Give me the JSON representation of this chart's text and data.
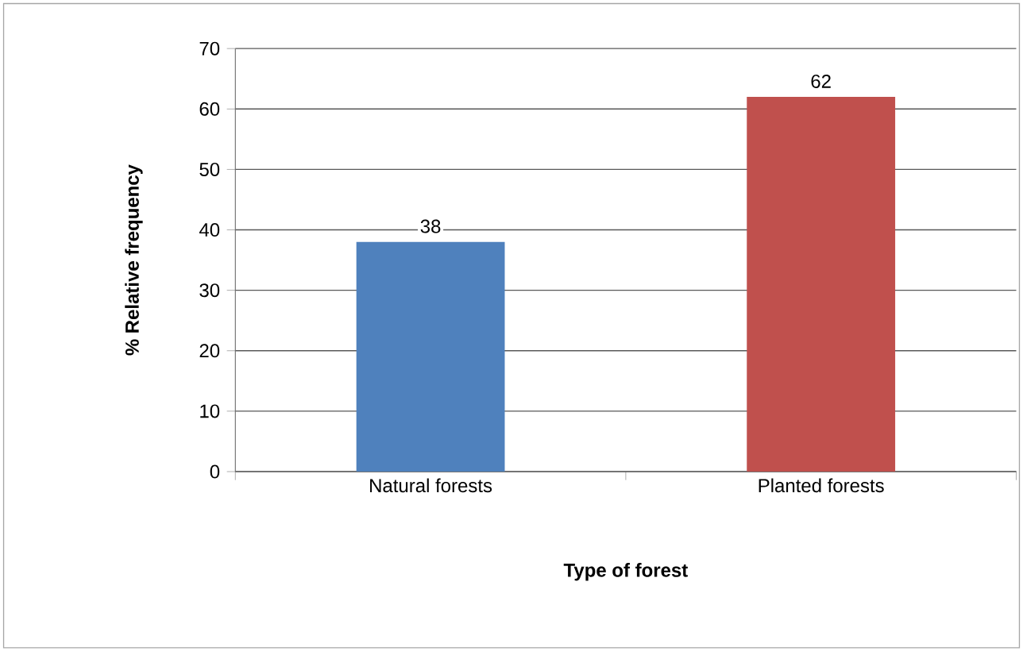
{
  "chart_data": {
    "type": "bar",
    "categories": [
      "Natural forests",
      "Planted forests"
    ],
    "values": [
      38,
      62
    ],
    "colors": [
      "#4f81bd",
      "#c0504d"
    ],
    "xlabel": "Type of forest",
    "ylabel": "% Relative frequency",
    "ylim": [
      0,
      70
    ],
    "yticks": [
      0,
      10,
      20,
      30,
      40,
      50,
      60,
      70
    ],
    "grid": "y",
    "data_labels": true
  }
}
